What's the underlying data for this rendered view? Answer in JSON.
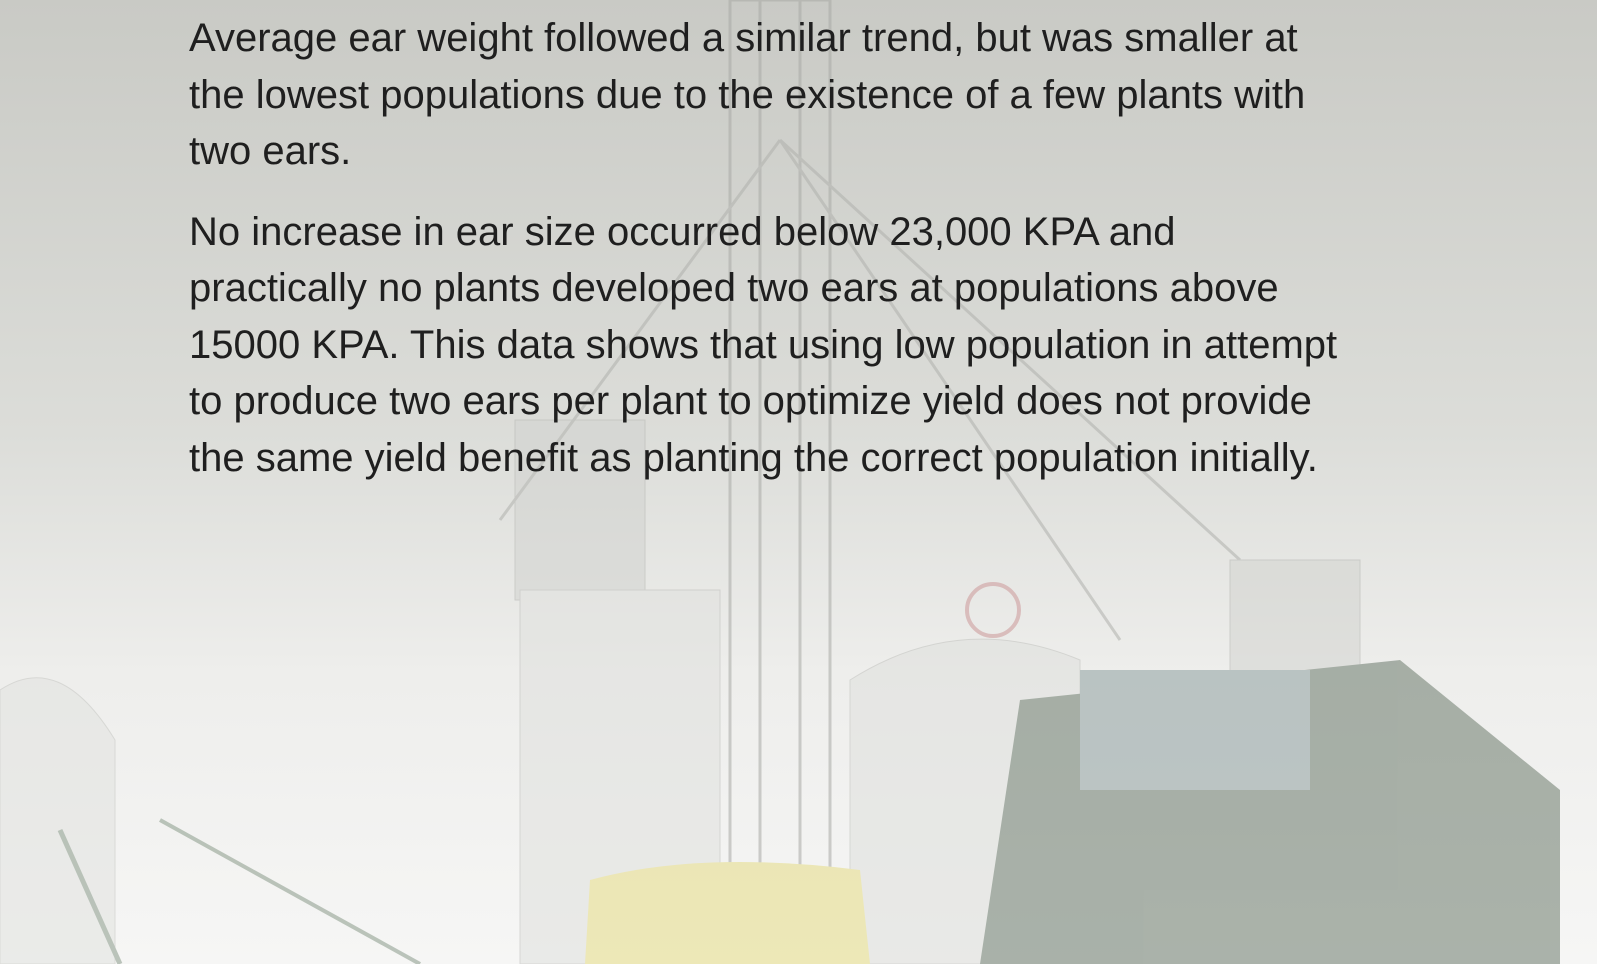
{
  "paragraphs": [
    {
      "lines": [
        "Average ear weight followed a similar trend, but was smaller at",
        "the lowest populations due to the existence of a few plants with",
        "two ears."
      ]
    },
    {
      "lines": [
        "No increase in ear size occurred below 23,000 KPA and",
        "practically no plants developed two ears at populations above",
        "15000 KPA. This data shows that using low population in attempt",
        "to produce two ears per plant to optimize yield does not provide",
        "the same yield benefit as planting the correct population initially."
      ]
    }
  ]
}
